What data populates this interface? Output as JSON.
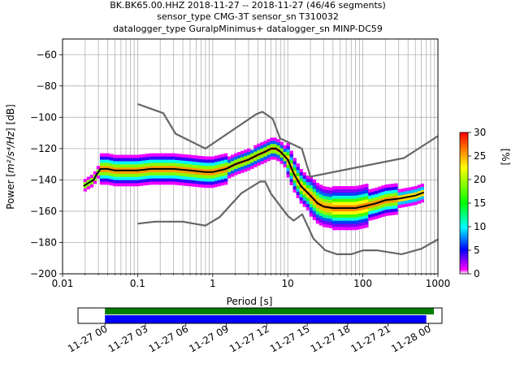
{
  "title": {
    "line1": "BK.BK65.00.HHZ   2018-11-27 -- 2018-11-27  (46/46 segments)",
    "line2": "sensor_type CMG-3T sensor_sn T310032",
    "line3": "datalogger_type GuralpMinimus+ datalogger_sn MINP-DC59"
  },
  "chart_data": [
    {
      "type": "heatmap",
      "title": "BK.BK65.00.HHZ   2018-11-27 -- 2018-11-27  (46/46 segments)",
      "xlabel": "Period [s]",
      "ylabel_prefix": "Power [",
      "ylabel_math": "m²/s⁴/Hz",
      "ylabel_suffix": "] [dB]",
      "xscale": "log",
      "xlim": [
        0.01,
        1000
      ],
      "ylim": [
        -200,
        -50
      ],
      "xticks": [
        0.01,
        0.1,
        1,
        10,
        100,
        1000
      ],
      "xtick_labels": [
        "0.01",
        "0.1",
        "1",
        "10",
        "100",
        "1000"
      ],
      "yticks": [
        -200,
        -180,
        -160,
        -140,
        -120,
        -100,
        -80,
        -60
      ],
      "ytick_labels": [
        "−200",
        "−180",
        "−160",
        "−140",
        "−120",
        "−100",
        "−80",
        "−60"
      ],
      "grid": true,
      "colorbar": {
        "label": "[%]",
        "range": [
          0,
          30
        ],
        "ticks": [
          "0",
          "5",
          "10",
          "15",
          "20",
          "25",
          "30"
        ],
        "colors": [
          "#ffffff",
          "#ff00ff",
          "#0000ff",
          "#00ffff",
          "#00ff00",
          "#ffff00",
          "#ff0000"
        ]
      },
      "mean_curve": {
        "color": "#000000",
        "points": [
          [
            0.019,
            -144
          ],
          [
            0.022,
            -142
          ],
          [
            0.026,
            -140
          ],
          [
            0.028,
            -137
          ],
          [
            0.032,
            -133
          ],
          [
            0.04,
            -133
          ],
          [
            0.05,
            -134
          ],
          [
            0.07,
            -134
          ],
          [
            0.1,
            -134
          ],
          [
            0.15,
            -133
          ],
          [
            0.2,
            -133
          ],
          [
            0.3,
            -133
          ],
          [
            0.5,
            -134
          ],
          [
            0.8,
            -135
          ],
          [
            1.0,
            -135
          ],
          [
            1.5,
            -133
          ],
          [
            2,
            -130
          ],
          [
            3,
            -127
          ],
          [
            4,
            -124
          ],
          [
            5,
            -122
          ],
          [
            6,
            -120
          ],
          [
            7,
            -120
          ],
          [
            8,
            -122
          ],
          [
            10,
            -127
          ],
          [
            12,
            -136
          ],
          [
            15,
            -144
          ],
          [
            20,
            -150
          ],
          [
            25,
            -155
          ],
          [
            30,
            -157
          ],
          [
            40,
            -158
          ],
          [
            60,
            -158
          ],
          [
            80,
            -158
          ],
          [
            100,
            -157
          ],
          [
            150,
            -155
          ],
          [
            200,
            -153
          ],
          [
            300,
            -152
          ],
          [
            500,
            -150
          ],
          [
            650,
            -148
          ]
        ]
      },
      "noise_models": {
        "color": "#666666",
        "nhnm": [
          [
            0.1,
            -91.5
          ],
          [
            0.22,
            -97.4
          ],
          [
            0.32,
            -110.5
          ],
          [
            0.8,
            -120
          ],
          [
            3.8,
            -98
          ],
          [
            4.6,
            -96.5
          ],
          [
            6.3,
            -101
          ],
          [
            7.9,
            -113.5
          ],
          [
            15.4,
            -120
          ],
          [
            20,
            -138
          ],
          [
            354,
            -126
          ],
          [
            1000,
            -112
          ]
        ],
        "nlnm": [
          [
            0.1,
            -168
          ],
          [
            0.17,
            -166.7
          ],
          [
            0.4,
            -166.7
          ],
          [
            0.8,
            -169.2
          ],
          [
            1.24,
            -163.7
          ],
          [
            2.4,
            -148.6
          ],
          [
            4.3,
            -141.1
          ],
          [
            5,
            -141.1
          ],
          [
            6,
            -149
          ],
          [
            10,
            -163
          ],
          [
            12,
            -166
          ],
          [
            15.6,
            -162
          ],
          [
            21.9,
            -177.5
          ],
          [
            31.6,
            -185
          ],
          [
            45,
            -187.5
          ],
          [
            70,
            -187.5
          ],
          [
            101,
            -185
          ],
          [
            154,
            -185
          ],
          [
            328,
            -187.5
          ],
          [
            600,
            -184
          ],
          [
            1000,
            -178
          ]
        ]
      }
    },
    {
      "type": "bar",
      "xlim": [
        "2018-11-26 22:00",
        "2018-11-28 01:00"
      ],
      "xtick_labels": [
        "11-27 00",
        "11-27 03",
        "11-27 06",
        "11-27 09",
        "11-27 12",
        "11-27 15",
        "11-27 18",
        "11-27 21",
        "11-28 00"
      ],
      "data_coverage": {
        "start": "2018-11-27 00:00",
        "end": "2018-11-28 00:24",
        "color": "#008000"
      },
      "psd_coverage": {
        "start": "2018-11-27 00:00",
        "end": "2018-11-27 23:50",
        "color": "#0000ff"
      }
    }
  ]
}
